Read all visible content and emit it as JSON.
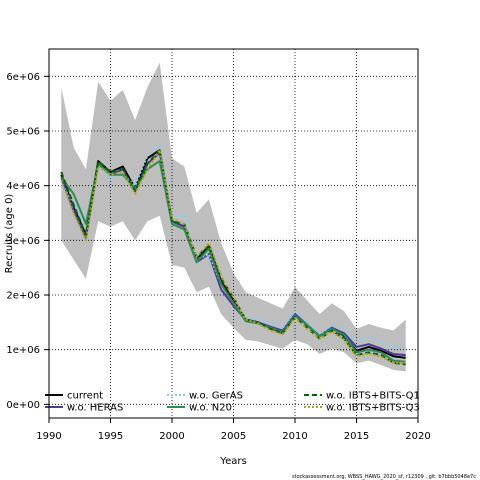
{
  "chart_data": {
    "type": "line",
    "xlabel": "Years",
    "ylabel": "Recruits (age 0)",
    "xlim": [
      1990,
      2020
    ],
    "ylim": [
      -250000,
      6500000
    ],
    "x_ticks": [
      1990,
      1995,
      2000,
      2005,
      2010,
      2015,
      2020
    ],
    "y_ticks": [
      0,
      1000000,
      2000000,
      3000000,
      4000000,
      5000000,
      6000000
    ],
    "y_tick_labels": [
      "0e+00",
      "1e+06",
      "2e+06",
      "3e+06",
      "4e+06",
      "5e+06",
      "6e+06"
    ],
    "grid": true,
    "legend_position": "bottom",
    "footnote": "stockassessment.org, WBSS_HAWG_2020_sf, r12309 , git: b7bbb5048e7c",
    "x": [
      1991,
      1992,
      1993,
      1994,
      1995,
      1996,
      1997,
      1998,
      1999,
      2000,
      2001,
      2002,
      2003,
      2004,
      2005,
      2006,
      2007,
      2008,
      2009,
      2010,
      2011,
      2012,
      2013,
      2014,
      2015,
      2016,
      2017,
      2018,
      2019
    ],
    "confidence_band": {
      "upper": [
        5800000,
        4700000,
        4300000,
        5900000,
        5550000,
        5750000,
        5200000,
        5800000,
        6250000,
        4500000,
        4350000,
        3500000,
        3750000,
        2950000,
        2400000,
        2050000,
        1950000,
        1850000,
        1750000,
        2150000,
        1900000,
        1650000,
        1850000,
        1700000,
        1380000,
        1470000,
        1400000,
        1350000,
        1550000
      ],
      "lower": [
        3000000,
        2650000,
        2300000,
        3350000,
        3250000,
        3350000,
        3000000,
        3350000,
        3450000,
        2550000,
        2500000,
        2050000,
        2150000,
        1650000,
        1400000,
        1180000,
        1150000,
        1080000,
        1020000,
        1180000,
        1100000,
        920000,
        1020000,
        950000,
        750000,
        800000,
        720000,
        630000,
        600000
      ]
    },
    "series": [
      {
        "name": "current",
        "color": "#000000",
        "dash": "solid",
        "values": [
          4200000,
          3600000,
          3100000,
          4450000,
          4250000,
          4350000,
          3950000,
          4500000,
          4650000,
          3350000,
          3250000,
          2650000,
          2900000,
          2250000,
          1900000,
          1550000,
          1500000,
          1400000,
          1300000,
          1650000,
          1450000,
          1250000,
          1400000,
          1250000,
          980000,
          1050000,
          980000,
          880000,
          850000
        ]
      },
      {
        "name": "w.o. HERAS",
        "color": "#4b3a9e",
        "dash": "solid",
        "values": [
          4150000,
          3550000,
          3050000,
          4400000,
          4200000,
          4300000,
          3900000,
          4400000,
          4600000,
          3350000,
          3250000,
          2600000,
          2750000,
          2100000,
          1800000,
          1550000,
          1500000,
          1420000,
          1350000,
          1650000,
          1450000,
          1250000,
          1400000,
          1300000,
          1050000,
          1100000,
          1020000,
          920000,
          900000
        ]
      },
      {
        "name": "w.o. GerAS",
        "color": "#87ceeb",
        "dash": "dotted",
        "values": [
          4000000,
          3700000,
          3250000,
          4350000,
          4150000,
          4200000,
          4000000,
          4550000,
          4750000,
          3450000,
          3450000,
          2650000,
          2750000,
          2200000,
          1850000,
          1600000,
          1580000,
          1500000,
          1400000,
          1700000,
          1500000,
          1280000,
          1450000,
          1400000,
          1150000,
          1250000,
          1150000,
          1050000,
          1050000
        ]
      },
      {
        "name": "w.o. N20",
        "color": "#2e8b57",
        "dash": "solid",
        "values": [
          4150000,
          3850000,
          3300000,
          4400000,
          4200000,
          4200000,
          3950000,
          4300000,
          4450000,
          3300000,
          3200000,
          2600000,
          2850000,
          2200000,
          1850000,
          1520000,
          1480000,
          1400000,
          1320000,
          1620000,
          1450000,
          1250000,
          1380000,
          1270000,
          950000,
          1000000,
          950000,
          800000,
          780000
        ]
      },
      {
        "name": "w.o. IBTS+BITS-Q1",
        "color": "#006400",
        "dash": "dashed",
        "values": [
          4250000,
          3650000,
          3100000,
          4450000,
          4250000,
          4300000,
          3900000,
          4400000,
          4650000,
          3350000,
          3300000,
          2700000,
          2900000,
          2300000,
          1950000,
          1550000,
          1500000,
          1380000,
          1300000,
          1600000,
          1400000,
          1200000,
          1350000,
          1200000,
          900000,
          950000,
          900000,
          760000,
          730000
        ]
      },
      {
        "name": "w.o. IBTS+BITS-Q3",
        "color": "#b8a020",
        "dash": "dotted",
        "values": [
          4100000,
          3500000,
          3000000,
          4350000,
          4200000,
          4250000,
          3850000,
          4300000,
          4650000,
          3400000,
          3300000,
          2700000,
          2950000,
          2350000,
          1950000,
          1550000,
          1480000,
          1350000,
          1280000,
          1580000,
          1380000,
          1200000,
          1330000,
          1180000,
          880000,
          930000,
          870000,
          760000,
          760000
        ]
      }
    ]
  }
}
